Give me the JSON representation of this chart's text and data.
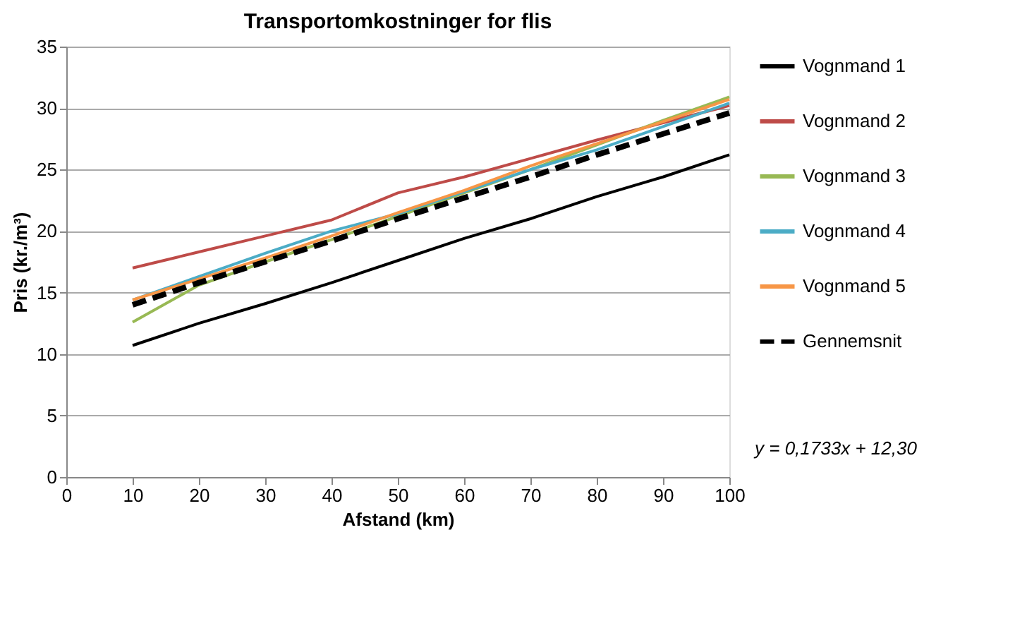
{
  "chart_data": {
    "type": "line",
    "title": "Transportomkostninger for flis",
    "xlabel": "Afstand (km)",
    "ylabel": "Pris (kr./m³)",
    "x": [
      10,
      20,
      30,
      40,
      50,
      60,
      70,
      80,
      90,
      100
    ],
    "series": [
      {
        "name": "Vognmand 1",
        "color": "#000000",
        "values": [
          10.7,
          12.5,
          14.1,
          15.8,
          17.6,
          19.4,
          21.0,
          22.8,
          24.4,
          26.2
        ]
      },
      {
        "name": "Vognmand 2",
        "color": "#be4b48",
        "values": [
          17.0,
          18.3,
          19.6,
          20.9,
          23.1,
          24.4,
          25.9,
          27.4,
          28.8,
          30.2
        ]
      },
      {
        "name": "Vognmand 3",
        "color": "#98b954",
        "values": [
          12.6,
          15.6,
          17.5,
          19.3,
          21.2,
          23.1,
          25.0,
          27.0,
          29.0,
          30.9
        ]
      },
      {
        "name": "Vognmand 4",
        "color": "#4bacc6",
        "values": [
          14.4,
          16.3,
          18.2,
          20.0,
          21.4,
          23.2,
          25.0,
          26.6,
          28.5,
          30.4
        ]
      },
      {
        "name": "Vognmand 5",
        "color": "#f79646",
        "values": [
          14.4,
          16.1,
          17.8,
          19.6,
          21.5,
          23.3,
          25.3,
          27.1,
          28.9,
          30.7
        ]
      },
      {
        "name": "Gennemsnit",
        "color": "#000000",
        "line_style": "dashed",
        "values": [
          14.0,
          15.8,
          17.5,
          19.2,
          21.0,
          22.7,
          24.4,
          26.2,
          27.9,
          29.6
        ]
      }
    ],
    "xlim": [
      0,
      100
    ],
    "xticks": [
      0,
      10,
      20,
      30,
      40,
      50,
      60,
      70,
      80,
      90,
      100
    ],
    "ylim": [
      0,
      35
    ],
    "yticks": [
      0,
      5,
      10,
      15,
      20,
      25,
      30,
      35
    ],
    "grid": "y",
    "legend": "right",
    "marker": "none",
    "annotations": [
      "y = 0,1733x + 12,30"
    ]
  }
}
